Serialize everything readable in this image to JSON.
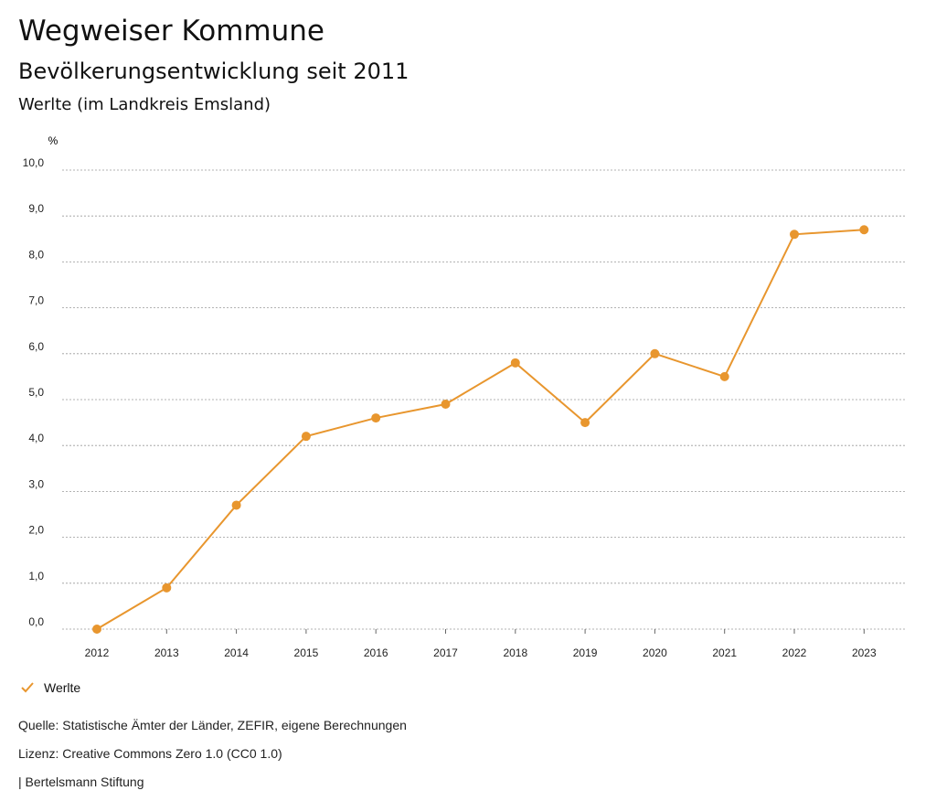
{
  "header": {
    "title": "Wegweiser Kommune",
    "subtitle": "Bevölkerungsentwicklung seit 2011",
    "region": "Werlte (im Landkreis Emsland)"
  },
  "chart_data": {
    "type": "line",
    "title": "Bevölkerungsentwicklung seit 2011",
    "ylabel": "%",
    "xlabel": "",
    "ylim": [
      0,
      10
    ],
    "yticks": [
      "0,0",
      "1,0",
      "2,0",
      "3,0",
      "4,0",
      "5,0",
      "6,0",
      "7,0",
      "8,0",
      "9,0",
      "10,0"
    ],
    "categories": [
      "2012",
      "2013",
      "2014",
      "2015",
      "2016",
      "2017",
      "2018",
      "2019",
      "2020",
      "2021",
      "2022",
      "2023"
    ],
    "series": [
      {
        "name": "Werlte",
        "color": "#E8962E",
        "values": [
          0.0,
          0.9,
          2.7,
          4.2,
          4.6,
          4.9,
          5.8,
          4.5,
          6.0,
          5.5,
          8.6,
          8.7
        ]
      }
    ],
    "grid": true,
    "legend": "bottom-left"
  },
  "legend": {
    "label": "Werlte"
  },
  "footer": {
    "source": "Quelle: Statistische Ämter der Länder, ZEFIR, eigene Berechnungen",
    "license": "Lizenz: Creative Commons Zero 1.0 (CC0 1.0)",
    "publisher": "| Bertelsmann Stiftung"
  }
}
